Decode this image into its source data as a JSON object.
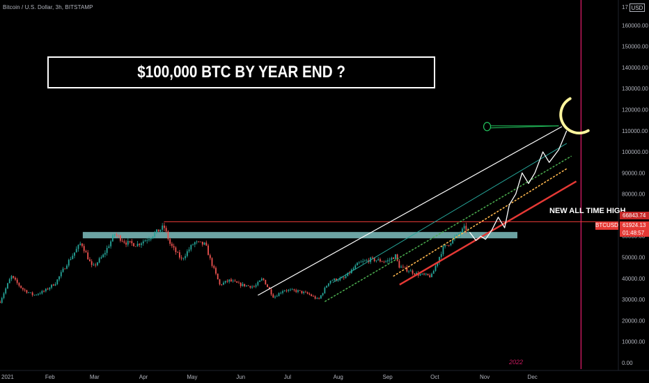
{
  "header": {
    "symbol_title": "Bitcoin / U.S. Dollar, 3h, BITSTAMP",
    "currency": "USD",
    "top_axis_partial": "17"
  },
  "annotations": {
    "headline": "$100,000 BTC BY YEAR END ?",
    "ath_label": "NEW ALL TIME HIGH",
    "year_marker": "2022"
  },
  "price_tags": {
    "ath_value": "66843.74",
    "ticker": "BTCUSD",
    "last_price": "61924.13",
    "countdown": "01:48:57"
  },
  "colors": {
    "background": "#000000",
    "up_candle": "#26a69a",
    "down_candle": "#ef5350",
    "resistance_zone": "#7fbfbf",
    "ath_line": "#e53935",
    "white_channel": "#ffffff",
    "teal_channel": "#26a69a",
    "green_channel": "#4caf50",
    "orange_channel": "#ffb74d",
    "red_channel": "#e53935",
    "moon": "#fff59d",
    "vertical_marker": "#c2185b",
    "axis_text": "#b2b5be"
  },
  "chart_data": {
    "type": "candlestick",
    "title": "Bitcoin / U.S. Dollar, 3h, BITSTAMP",
    "x_labels": [
      "2021",
      "Feb",
      "Mar",
      "Apr",
      "May",
      "Jun",
      "Jul",
      "Aug",
      "Sep",
      "Oct",
      "Nov",
      "Dec"
    ],
    "y_ticks": [
      "0.00",
      "10000.00",
      "20000.00",
      "30000.00",
      "40000.00",
      "50000.00",
      "60000.00",
      "70000.00",
      "80000.00",
      "90000.00",
      "100000.00",
      "110000.00",
      "120000.00",
      "130000.00",
      "140000.00",
      "150000.00",
      "160000.00"
    ],
    "ylim": [
      -3000,
      172000
    ],
    "price_path": [
      [
        "2021-01-01",
        29000
      ],
      [
        "2021-01-08",
        41000
      ],
      [
        "2021-01-15",
        35000
      ],
      [
        "2021-01-22",
        32000
      ],
      [
        "2021-01-29",
        34000
      ],
      [
        "2021-02-05",
        38000
      ],
      [
        "2021-02-12",
        47000
      ],
      [
        "2021-02-21",
        57000
      ],
      [
        "2021-02-28",
        45000
      ],
      [
        "2021-03-07",
        51000
      ],
      [
        "2021-03-14",
        61000
      ],
      [
        "2021-03-21",
        57000
      ],
      [
        "2021-03-28",
        56000
      ],
      [
        "2021-04-04",
        59000
      ],
      [
        "2021-04-14",
        64500
      ],
      [
        "2021-04-18",
        56000
      ],
      [
        "2021-04-25",
        49000
      ],
      [
        "2021-05-03",
        57000
      ],
      [
        "2021-05-10",
        56000
      ],
      [
        "2021-05-13",
        49000
      ],
      [
        "2021-05-19",
        37000
      ],
      [
        "2021-05-25",
        39000
      ],
      [
        "2021-06-01",
        37000
      ],
      [
        "2021-06-10",
        36000
      ],
      [
        "2021-06-15",
        40000
      ],
      [
        "2021-06-22",
        31000
      ],
      [
        "2021-06-28",
        34500
      ],
      [
        "2021-07-07",
        34000
      ],
      [
        "2021-07-14",
        32500
      ],
      [
        "2021-07-20",
        29800
      ],
      [
        "2021-07-27",
        39000
      ],
      [
        "2021-08-05",
        40000
      ],
      [
        "2021-08-14",
        47000
      ],
      [
        "2021-08-22",
        49000
      ],
      [
        "2021-09-01",
        48000
      ],
      [
        "2021-09-07",
        51000
      ],
      [
        "2021-09-08",
        46000
      ],
      [
        "2021-09-20",
        42000
      ],
      [
        "2021-09-29",
        41000
      ],
      [
        "2021-10-06",
        54000
      ],
      [
        "2021-10-15",
        60000
      ],
      [
        "2021-10-20",
        64000
      ],
      [
        "2021-10-23",
        61924
      ]
    ],
    "projection_path": [
      [
        "2021-10-23",
        61924
      ],
      [
        "2021-10-27",
        58000
      ],
      [
        "2021-10-30",
        60000
      ],
      [
        "2021-11-02",
        58500
      ],
      [
        "2021-11-06",
        63000
      ],
      [
        "2021-11-10",
        69000
      ],
      [
        "2021-11-14",
        64000
      ],
      [
        "2021-11-17",
        75000
      ],
      [
        "2021-11-21",
        80000
      ],
      [
        "2021-11-25",
        90000
      ],
      [
        "2021-11-29",
        85000
      ],
      [
        "2021-12-03",
        90000
      ],
      [
        "2021-12-08",
        100000
      ],
      [
        "2021-12-12",
        95000
      ],
      [
        "2021-12-18",
        101000
      ],
      [
        "2021-12-23",
        110000
      ]
    ],
    "resistance_zone": {
      "x_start": "2021-02-22",
      "x_end": "2021-11-22",
      "y_low": 59000,
      "y_high": 62000
    },
    "ath_line": {
      "x_start": "2021-04-14",
      "value": 66843.74
    },
    "channel_lines": [
      {
        "name": "white",
        "x1": "2021-06-12",
        "y1": 32000,
        "x2": "2021-12-20",
        "y2": 112000
      },
      {
        "name": "teal",
        "x1": "2021-07-29",
        "y1": 38000,
        "x2": "2021-12-23",
        "y2": 104000
      },
      {
        "name": "green",
        "x1": "2021-07-24",
        "y1": 29000,
        "x2": "2021-12-26",
        "y2": 98000
      },
      {
        "name": "orange",
        "x1": "2021-09-05",
        "y1": 41000,
        "x2": "2021-12-23",
        "y2": 92000
      },
      {
        "name": "red",
        "x1": "2021-09-09",
        "y1": 37000,
        "x2": "2021-12-29",
        "y2": 86000
      }
    ],
    "vertical_marker": "2022-01-01",
    "grid": false
  }
}
